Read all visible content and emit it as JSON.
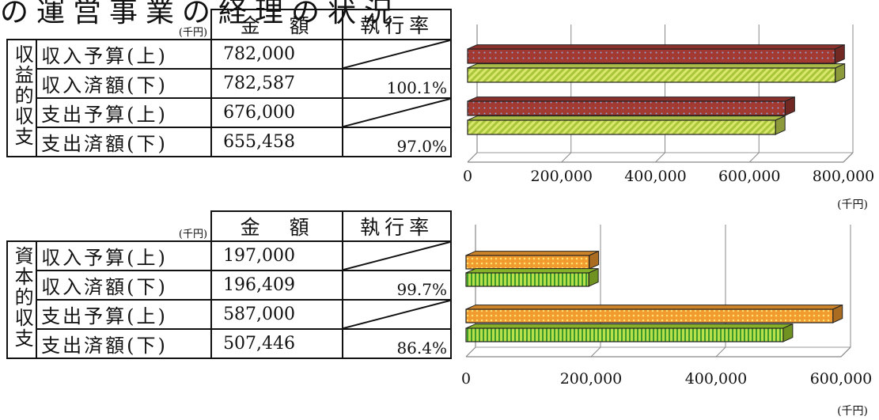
{
  "title": "の運営事業の経理の状況",
  "tables": [
    {
      "section_label": "収益的収支",
      "unit": "(千円)",
      "header_amount": "金　額",
      "header_rate": "執行率",
      "rows": [
        {
          "label": "収入予算(上)",
          "amount": "782,000",
          "rate": ""
        },
        {
          "label": "収入済額(下)",
          "amount": "782,587",
          "rate": "100.1%"
        },
        {
          "label": "支出予算(上)",
          "amount": "676,000",
          "rate": ""
        },
        {
          "label": "支出済額(下)",
          "amount": "655,458",
          "rate": "97.0%"
        }
      ]
    },
    {
      "section_label": "資本的収支",
      "unit": "(千円)",
      "header_amount": "金　額",
      "header_rate": "執行率",
      "rows": [
        {
          "label": "収入予算(上)",
          "amount": "197,000",
          "rate": ""
        },
        {
          "label": "収入済額(下)",
          "amount": "196,409",
          "rate": "99.7%"
        },
        {
          "label": "支出予算(上)",
          "amount": "587,000",
          "rate": ""
        },
        {
          "label": "支出済額(下)",
          "amount": "507,446",
          "rate": "86.4%"
        }
      ]
    }
  ],
  "chart_data": [
    {
      "type": "bar",
      "orientation": "horizontal",
      "style": "3d",
      "xlim": [
        0,
        800000
      ],
      "ticks": [
        "0",
        "200,000",
        "400,000",
        "600,000",
        "800,000"
      ],
      "unit_label": "(千円)",
      "grid": true,
      "bars": [
        {
          "value": 782000,
          "color": "#a33a32",
          "pattern": "dots"
        },
        {
          "value": 782587,
          "color": "#c9dc55",
          "pattern": "diagonal"
        },
        {
          "value": 676000,
          "color": "#a33a32",
          "pattern": "dots"
        },
        {
          "value": 655458,
          "color": "#c9dc55",
          "pattern": "diagonal"
        }
      ]
    },
    {
      "type": "bar",
      "orientation": "horizontal",
      "style": "3d",
      "xlim": [
        0,
        600000
      ],
      "ticks": [
        "0",
        "200,000",
        "400,000",
        "600,000"
      ],
      "unit_label": "(千円)",
      "grid": true,
      "bars": [
        {
          "value": 197000,
          "color": "#f19a2e",
          "pattern": "dots"
        },
        {
          "value": 196409,
          "color": "#9fd12f",
          "pattern": "vertical"
        },
        {
          "value": 587000,
          "color": "#f19a2e",
          "pattern": "dots"
        },
        {
          "value": 507446,
          "color": "#9fd12f",
          "pattern": "vertical"
        }
      ]
    }
  ]
}
